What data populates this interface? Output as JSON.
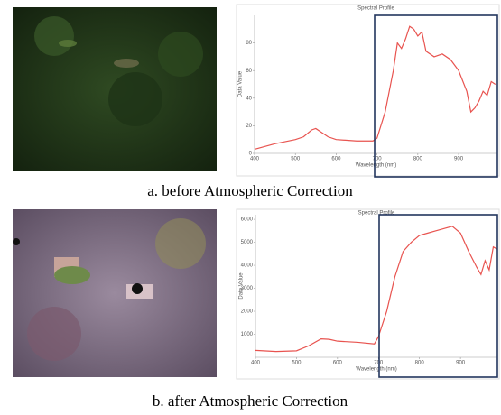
{
  "chart_data": [
    {
      "type": "line",
      "title": "Spectral Profile",
      "xlabel": "Wavelength (nm)",
      "ylabel": "Data Value",
      "caption": "a. before Atmospheric Correction",
      "color": "#e8534f",
      "x": [
        400,
        450,
        500,
        520,
        540,
        550,
        560,
        580,
        600,
        650,
        690,
        700,
        720,
        740,
        750,
        760,
        770,
        780,
        790,
        800,
        810,
        820,
        840,
        860,
        880,
        900,
        920,
        930,
        940,
        950,
        960,
        970,
        980,
        990
      ],
      "values": [
        3,
        7,
        10,
        12,
        17,
        18,
        16,
        12,
        10,
        9,
        9,
        11,
        30,
        60,
        80,
        76,
        83,
        92,
        90,
        85,
        88,
        74,
        70,
        72,
        68,
        60,
        45,
        30,
        33,
        38,
        45,
        42,
        52,
        50
      ],
      "xlim": [
        400,
        995
      ],
      "xticks": [
        400,
        500,
        600,
        700,
        800,
        900
      ],
      "ylim": [
        0,
        100
      ],
      "yticks": [
        0,
        20,
        40,
        60,
        80
      ]
    },
    {
      "type": "line",
      "title": "Spectral Profile",
      "xlabel": "Wavelength (nm)",
      "ylabel": "Data Value",
      "caption": "b. after Atmospheric Correction",
      "color": "#e8534f",
      "x": [
        400,
        450,
        500,
        530,
        560,
        580,
        600,
        650,
        690,
        700,
        720,
        740,
        760,
        780,
        800,
        820,
        840,
        860,
        880,
        900,
        920,
        940,
        950,
        960,
        970,
        980,
        990
      ],
      "values": [
        300,
        250,
        280,
        500,
        800,
        780,
        700,
        650,
        580,
        900,
        2000,
        3500,
        4600,
        5000,
        5300,
        5400,
        5500,
        5600,
        5700,
        5400,
        4600,
        3900,
        3600,
        4200,
        3800,
        4800,
        4700
      ],
      "xlim": [
        400,
        990
      ],
      "xticks": [
        400,
        500,
        600,
        700,
        800,
        900
      ],
      "ylim": [
        0,
        6200
      ],
      "yticks": [
        1000,
        2000,
        3000,
        4000,
        5000,
        6000
      ]
    }
  ]
}
